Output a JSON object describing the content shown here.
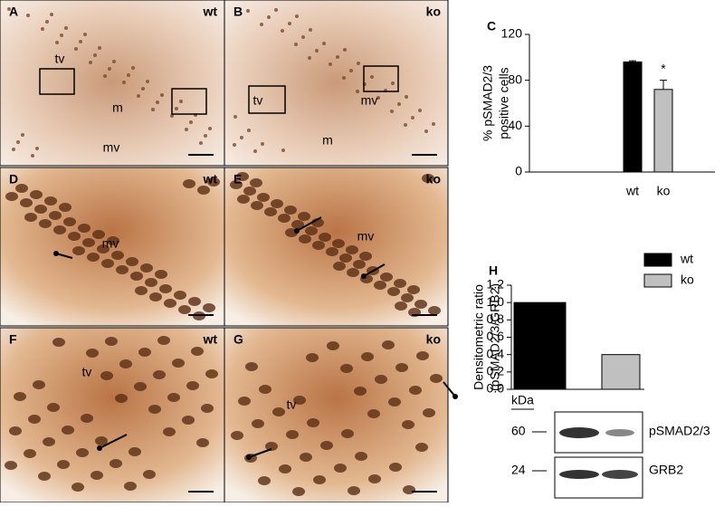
{
  "micrographs": [
    {
      "letter": "A",
      "genotype": "wt",
      "labels": [
        "tv",
        "m",
        "mv"
      ]
    },
    {
      "letter": "B",
      "genotype": "ko",
      "labels": [
        "tv",
        "mv",
        "m"
      ]
    },
    {
      "letter": "D",
      "genotype": "wt",
      "labels": [
        "mv"
      ]
    },
    {
      "letter": "E",
      "genotype": "ko",
      "labels": [
        "mv"
      ]
    },
    {
      "letter": "F",
      "genotype": "wt",
      "labels": [
        "tv"
      ]
    },
    {
      "letter": "G",
      "genotype": "ko",
      "labels": [
        "tv"
      ]
    }
  ],
  "chart_data": [
    {
      "type": "bar",
      "label": "C",
      "ylabel": [
        "% pSMAD2/3",
        "positive cells"
      ],
      "categories": [
        "wt",
        "ko"
      ],
      "values": [
        96,
        72
      ],
      "errors": [
        1,
        8
      ],
      "colors": [
        "#000000",
        "#c0c0c0"
      ],
      "annotation": "*",
      "ylim": [
        0,
        120
      ],
      "yticks": [
        0,
        40,
        80,
        120
      ]
    },
    {
      "type": "bar",
      "label": "H",
      "ylabel": [
        "Densitometric ratio",
        "(pSMAD2/3/GRB2)"
      ],
      "series": [
        {
          "name": "wt",
          "color": "#000000",
          "values": [
            1.0
          ]
        },
        {
          "name": "ko",
          "color": "#c0c0c0",
          "values": [
            0.4
          ]
        }
      ],
      "ylim": [
        0,
        1.2
      ],
      "yticks": [
        {
          "value": 0,
          "label": "0.0"
        },
        0.2,
        0.4,
        0.6,
        0.8,
        {
          "value": 1,
          "label": "1.0"
        },
        1.2
      ]
    }
  ],
  "blot": {
    "unit_label": "kDa",
    "markers": [
      60,
      24
    ],
    "bands": [
      "pSMAD2/3",
      "GRB2"
    ]
  }
}
